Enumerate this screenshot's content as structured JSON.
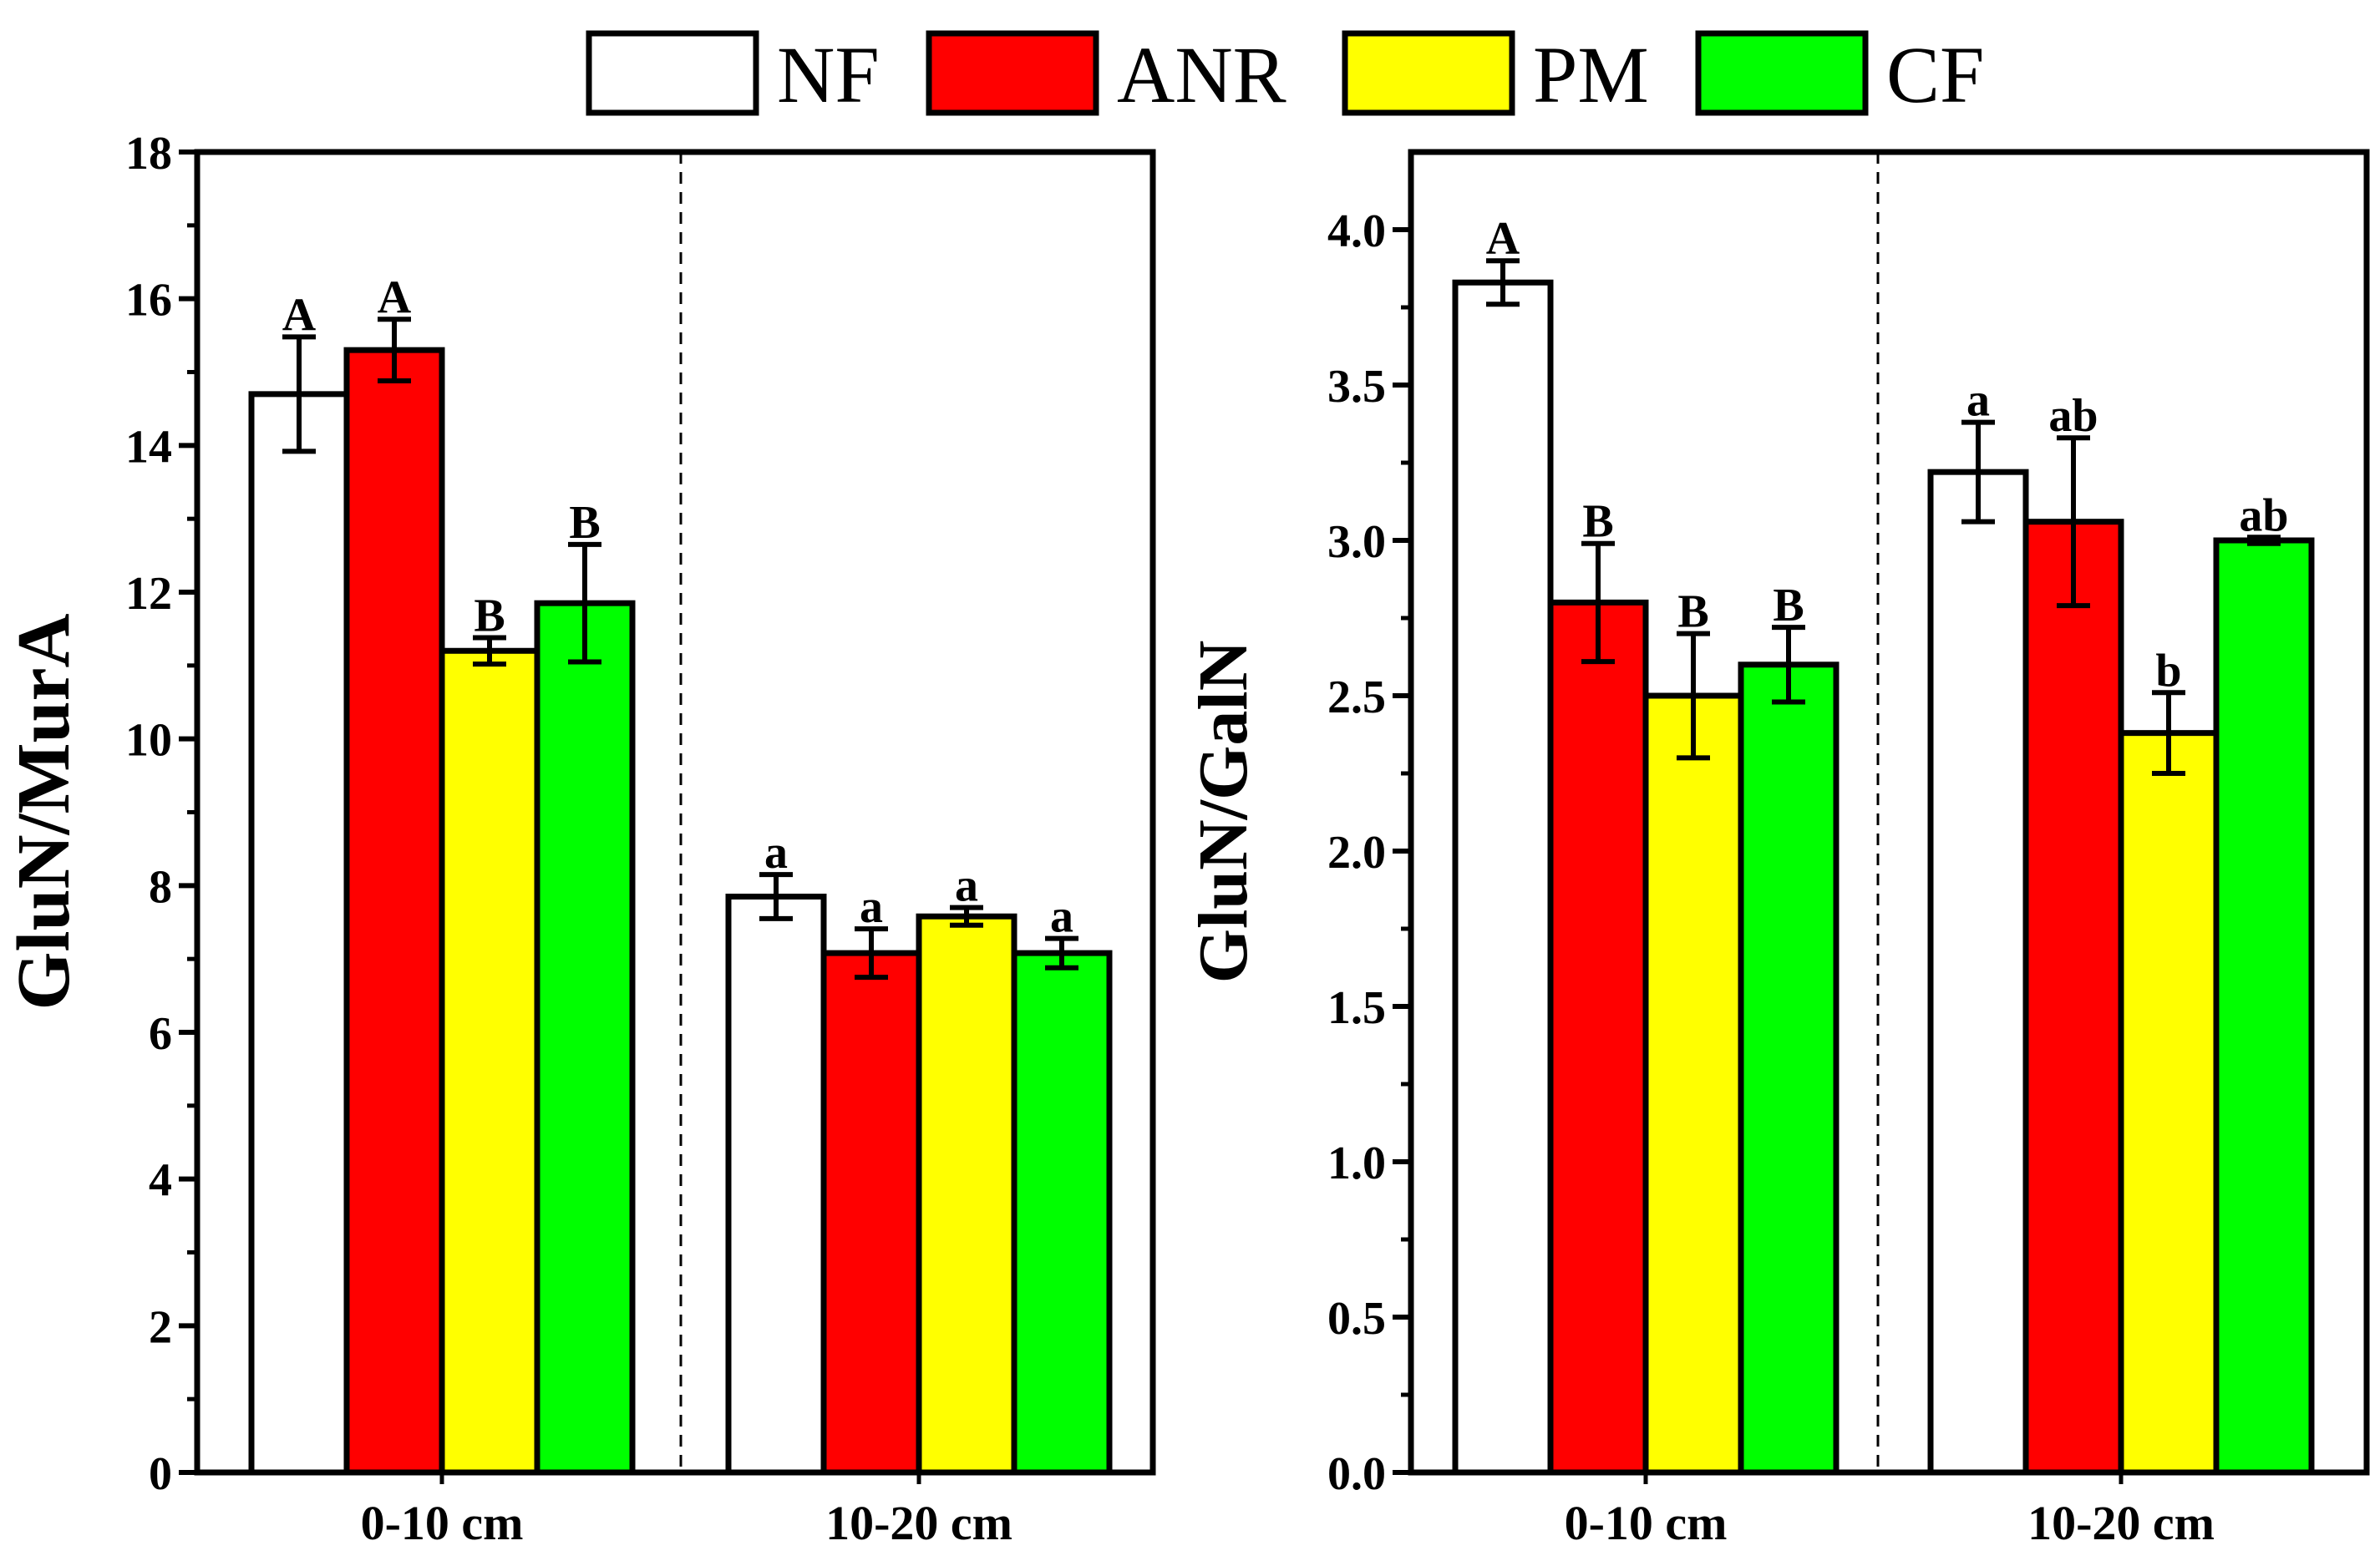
{
  "legend": [
    {
      "label": "NF",
      "color": "#ffffff"
    },
    {
      "label": "ANR",
      "color": "#ff0000"
    },
    {
      "label": "PM",
      "color": "#ffff00"
    },
    {
      "label": "CF",
      "color": "#00ff00"
    }
  ],
  "chart_data": [
    {
      "type": "bar",
      "ylabel": "GluN/MurA",
      "xlabel": "",
      "ylim": [
        0,
        18
      ],
      "yticks": [
        0,
        2,
        4,
        6,
        8,
        10,
        12,
        14,
        16,
        18
      ],
      "ytick_labels": [
        "0",
        "2",
        "4",
        "6",
        "8",
        "10",
        "12",
        "14",
        "16",
        "18"
      ],
      "categories": [
        "0-10 cm",
        "10-20 cm"
      ],
      "series": [
        {
          "name": "NF",
          "values": [
            14.7,
            7.85
          ],
          "errors": [
            0.78,
            0.3
          ],
          "letters": [
            "A",
            "a"
          ]
        },
        {
          "name": "ANR",
          "values": [
            15.3,
            7.08
          ],
          "errors": [
            0.42,
            0.33
          ],
          "letters": [
            "A",
            "a"
          ]
        },
        {
          "name": "PM",
          "values": [
            11.2,
            7.58
          ],
          "errors": [
            0.18,
            0.12
          ],
          "letters": [
            "B",
            "a"
          ]
        },
        {
          "name": "CF",
          "values": [
            11.85,
            7.08
          ],
          "errors": [
            0.8,
            0.2
          ],
          "letters": [
            "B",
            "a"
          ]
        }
      ]
    },
    {
      "type": "bar",
      "ylabel": "GluN/GalN",
      "xlabel": "",
      "ylim": [
        0,
        4.25
      ],
      "yticks": [
        0,
        0.5,
        1,
        1.5,
        2,
        2.5,
        3,
        3.5,
        4
      ],
      "ytick_labels": [
        "0.0",
        "0.5",
        "1.0",
        "1.5",
        "2.0",
        "2.5",
        "3.0",
        "3.5",
        "4.0"
      ],
      "categories": [
        "0-10 cm",
        "10-20 cm"
      ],
      "series": [
        {
          "name": "NF",
          "values": [
            3.83,
            3.22
          ],
          "errors": [
            0.07,
            0.16
          ],
          "letters": [
            "A",
            "a"
          ]
        },
        {
          "name": "ANR",
          "values": [
            2.8,
            3.06
          ],
          "errors": [
            0.19,
            0.27
          ],
          "letters": [
            "B",
            "ab"
          ]
        },
        {
          "name": "PM",
          "values": [
            2.5,
            2.38
          ],
          "errors": [
            0.2,
            0.13
          ],
          "letters": [
            "B",
            "b"
          ]
        },
        {
          "name": "CF",
          "values": [
            2.6,
            3.0
          ],
          "errors": [
            0.12,
            0.01
          ],
          "letters": [
            "B",
            "ab"
          ]
        }
      ]
    }
  ]
}
